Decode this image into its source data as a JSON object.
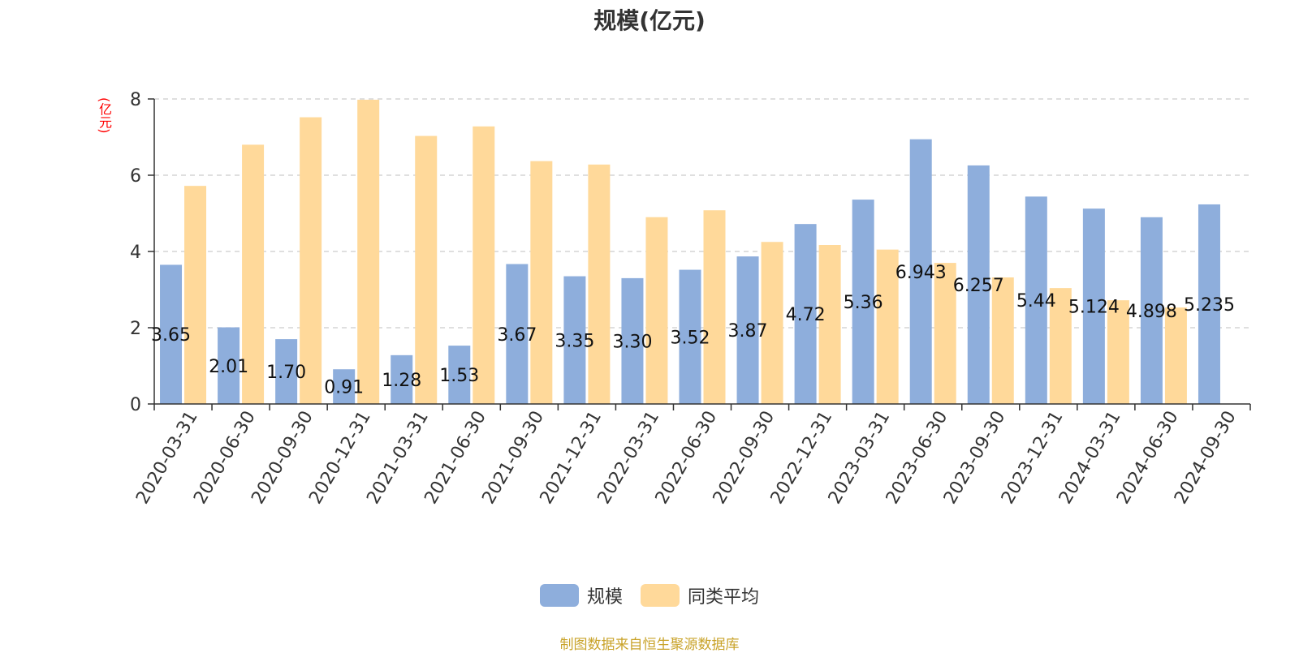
{
  "header": {
    "title": "规模(亿元)"
  },
  "axis": {
    "y_unit": "(亿元)"
  },
  "legend": {
    "series1": {
      "label": "规模",
      "color": "#8eaedc"
    },
    "series2": {
      "label": "同类平均",
      "color": "#ffd99a"
    }
  },
  "footer": {
    "source": "制图数据来自恒生聚源数据库"
  },
  "chart_data": {
    "type": "bar",
    "title": "规模(亿元)",
    "ylabel": "(亿元)",
    "ylim": [
      0,
      8
    ],
    "yticks": [
      0,
      2,
      4,
      6,
      8
    ],
    "grid": true,
    "legend_position": "bottom",
    "categories": [
      "2020-03-31",
      "2020-06-30",
      "2020-09-30",
      "2020-12-31",
      "2021-03-31",
      "2021-06-30",
      "2021-09-30",
      "2021-12-31",
      "2022-03-31",
      "2022-06-30",
      "2022-09-30",
      "2022-12-31",
      "2023-03-31",
      "2023-06-30",
      "2023-09-30",
      "2023-12-31",
      "2024-03-31",
      "2024-06-30",
      "2024-09-30"
    ],
    "series": [
      {
        "name": "规模",
        "color": "#8eaedc",
        "values": [
          3.65,
          2.01,
          1.7,
          0.91,
          1.28,
          1.53,
          3.67,
          3.35,
          3.3,
          3.52,
          3.87,
          4.72,
          5.36,
          6.943,
          6.257,
          5.44,
          5.124,
          4.898,
          5.235
        ],
        "labels": [
          "3.65",
          "2.01",
          "1.70",
          "0.91",
          "1.28",
          "1.53",
          "3.67",
          "3.35",
          "3.30",
          "3.52",
          "3.87",
          "4.72",
          "5.36",
          "6.943",
          "6.257",
          "5.44",
          "5.124",
          "4.898",
          "5.235"
        ]
      },
      {
        "name": "同类平均",
        "color": "#ffd99a",
        "values": [
          5.72,
          6.8,
          7.52,
          7.98,
          7.03,
          7.28,
          6.37,
          6.28,
          4.9,
          5.08,
          4.25,
          4.17,
          4.05,
          3.7,
          3.32,
          3.04,
          2.72,
          2.53,
          null
        ]
      }
    ]
  }
}
